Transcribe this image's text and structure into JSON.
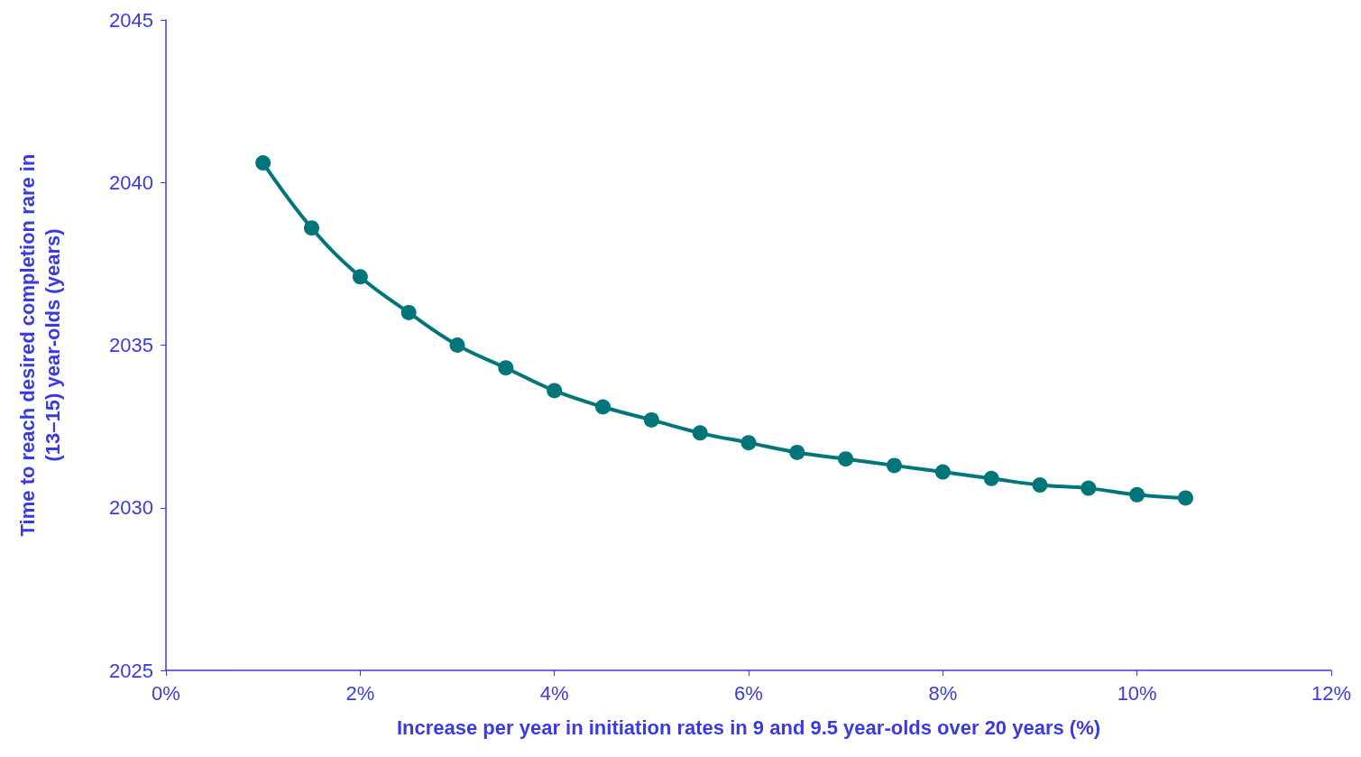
{
  "chart_data": {
    "type": "line",
    "xlabel": "Increase per year in initiation rates in 9 and 9.5 year-olds over 20 years (%)",
    "ylabel": "Time to reach desired completion rare in\n(13–15) year-olds (years)",
    "x": [
      1,
      1.5,
      2,
      2.5,
      3,
      3.5,
      4,
      4.5,
      5,
      5.5,
      6,
      6.5,
      7,
      7.5,
      8,
      8.5,
      9,
      9.5,
      10,
      10.5
    ],
    "series": [
      {
        "color": "#00767a",
        "values": [
          2040.6,
          2038.6,
          2037.1,
          2036.0,
          2035.0,
          2034.3,
          2033.6,
          2033.1,
          2032.7,
          2032.3,
          2032.0,
          2031.7,
          2031.5,
          2031.3,
          2031.1,
          2030.9,
          2030.7,
          2030.6,
          2030.4,
          2030.3
        ]
      }
    ],
    "xlim": [
      0,
      12
    ],
    "xticks": [
      {
        "value": 0,
        "label": "0%"
      },
      {
        "value": 2,
        "label": "2%"
      },
      {
        "value": 4,
        "label": "4%"
      },
      {
        "value": 6,
        "label": "6%"
      },
      {
        "value": 8,
        "label": "8%"
      },
      {
        "value": 10,
        "label": "10%"
      },
      {
        "value": 12,
        "label": "12%"
      }
    ],
    "ylim": [
      2025,
      2045
    ],
    "yticks": [
      2025,
      2030,
      2035,
      2040,
      2045
    ],
    "grid": false,
    "marker": "circle",
    "line_style": "solid"
  }
}
